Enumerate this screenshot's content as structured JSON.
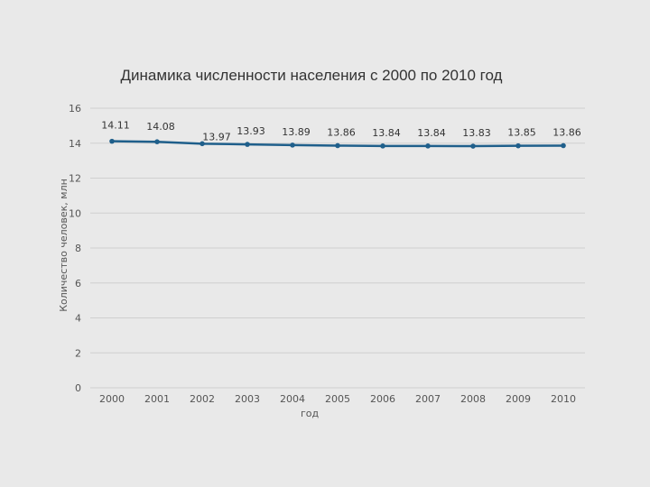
{
  "chart_data": {
    "type": "line",
    "title": "Динамика численности населения с 2000 по 2010 год",
    "xlabel": "год",
    "ylabel": "Количество человек, млн",
    "categories": [
      "2000",
      "2001",
      "2002",
      "2003",
      "2004",
      "2005",
      "2006",
      "2007",
      "2008",
      "2009",
      "2010"
    ],
    "series": [
      {
        "values": [
          14.11,
          14.08,
          13.97,
          13.93,
          13.89,
          13.86,
          13.84,
          13.84,
          13.83,
          13.85,
          13.86
        ]
      }
    ],
    "data_labels": [
      "14.11",
      "14.08",
      "13.97",
      "13.93",
      "13.89",
      "13.86",
      "13.84",
      "13.84",
      "13.83",
      "13.85",
      "13.86"
    ],
    "ylim": [
      0,
      16
    ],
    "yticks": [
      "0",
      "2",
      "4",
      "6",
      "8",
      "10",
      "12",
      "14",
      "16"
    ],
    "grid": true,
    "line_color": "#1f5f8b"
  }
}
